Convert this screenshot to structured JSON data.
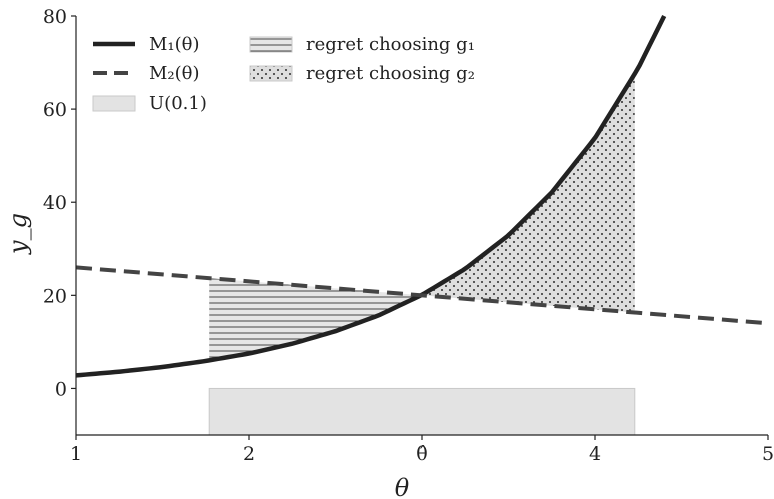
{
  "chart_data": {
    "type": "line",
    "xlabel": "θ",
    "ylabel": "y_g",
    "xlim": [
      1,
      5
    ],
    "ylim": [
      -10,
      80
    ],
    "x_ticks": [
      {
        "value": 1,
        "label": "1"
      },
      {
        "value": 2,
        "label": "2"
      },
      {
        "value": 3,
        "label": "θ̂"
      },
      {
        "value": 4,
        "label": "4"
      },
      {
        "value": 5,
        "label": "5"
      }
    ],
    "y_ticks": [
      {
        "value": 0,
        "label": "0"
      },
      {
        "value": 20,
        "label": "20"
      },
      {
        "value": 40,
        "label": "40"
      },
      {
        "value": 60,
        "label": "60"
      },
      {
        "value": 80,
        "label": "80"
      }
    ],
    "series": [
      {
        "name": "M₁(θ)",
        "style": "solid",
        "color": "#222222",
        "x": [
          1.0,
          1.25,
          1.5,
          1.75,
          2.0,
          2.25,
          2.5,
          2.75,
          3.0,
          3.25,
          3.5,
          3.75,
          4.0,
          4.25,
          4.4
        ],
        "y": [
          2.8,
          3.6,
          4.6,
          5.9,
          7.5,
          9.6,
          12.3,
          15.7,
          20.1,
          25.7,
          32.9,
          42.1,
          53.8,
          68.8,
          80.0
        ]
      },
      {
        "name": "M₂(θ)",
        "style": "dashed",
        "color": "#444444",
        "x": [
          1.0,
          5.0
        ],
        "y": [
          26.0,
          14.0
        ]
      }
    ],
    "shaded_regions": [
      {
        "name": "regret choosing g₁",
        "pattern": "horizontal-hatch",
        "x_range": [
          1.77,
          2.99
        ]
      },
      {
        "name": "regret choosing g₂",
        "pattern": "dots",
        "x_range": [
          2.99,
          4.23
        ]
      },
      {
        "name": "U(0.1)",
        "pattern": "solid-gray",
        "x_range": [
          1.77,
          4.23
        ],
        "y_range": [
          -10,
          0
        ]
      }
    ],
    "legend": {
      "placement": "top-left",
      "entries": [
        {
          "label": "M₁(θ)",
          "kind": "line-solid"
        },
        {
          "label": "M₂(θ)",
          "kind": "line-dashed"
        },
        {
          "label": "U(0.1)",
          "kind": "patch-gray"
        },
        {
          "label": "regret choosing g₁",
          "kind": "patch-hatch"
        },
        {
          "label": "regret choosing g₂",
          "kind": "patch-dots"
        }
      ]
    },
    "grid": false
  }
}
